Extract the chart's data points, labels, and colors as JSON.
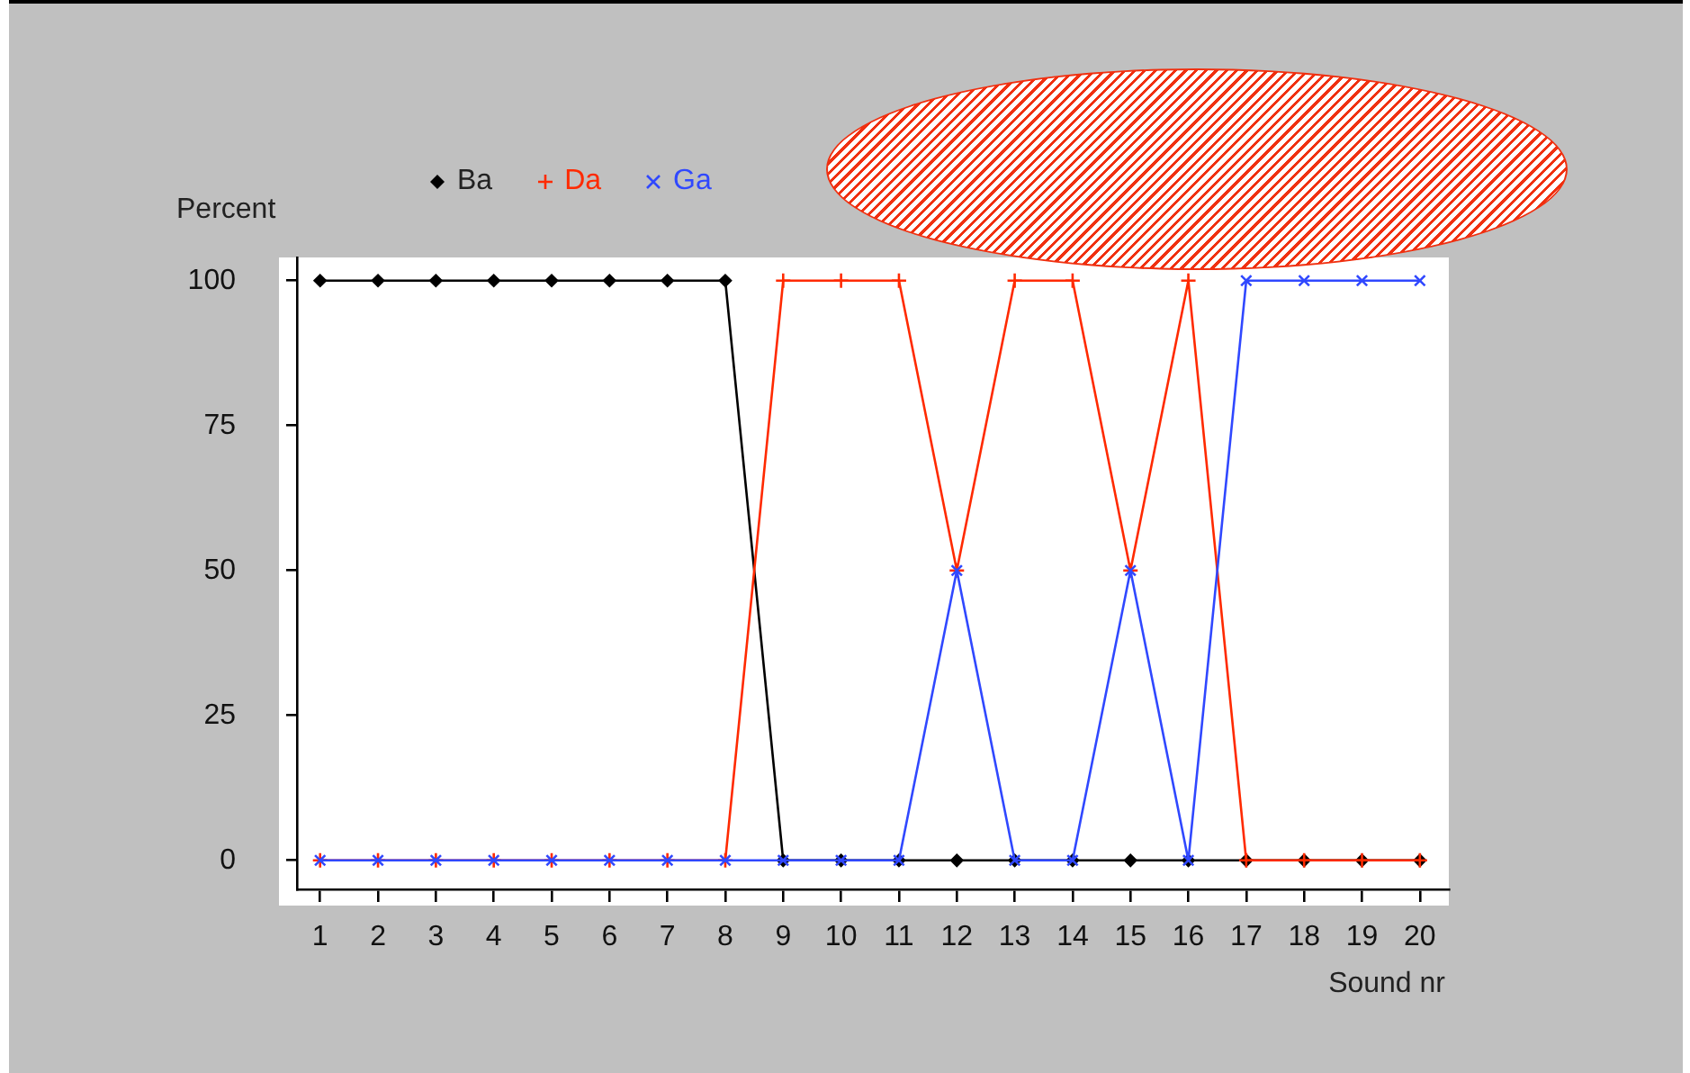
{
  "chart_data": {
    "type": "line",
    "ylabel": "Percent",
    "xlabel": "Sound nr",
    "x": [
      1,
      2,
      3,
      4,
      5,
      6,
      7,
      8,
      9,
      10,
      11,
      12,
      13,
      14,
      15,
      16,
      17,
      18,
      19,
      20
    ],
    "series": [
      {
        "name": "Ba",
        "color": "#000000",
        "marker": "diamond",
        "values": [
          100,
          100,
          100,
          100,
          100,
          100,
          100,
          100,
          0,
          0,
          0,
          0,
          0,
          0,
          0,
          0,
          0,
          0,
          0,
          0
        ]
      },
      {
        "name": "Da",
        "color": "#ff2a00",
        "marker": "cross",
        "values": [
          0,
          0,
          0,
          0,
          0,
          0,
          0,
          0,
          100,
          100,
          100,
          50,
          100,
          100,
          50,
          100,
          0,
          0,
          0,
          0
        ]
      },
      {
        "name": "Ga",
        "color": "#3048ff",
        "marker": "x",
        "values": [
          0,
          0,
          0,
          0,
          0,
          0,
          0,
          0,
          0,
          0,
          0,
          50,
          0,
          0,
          50,
          0,
          100,
          100,
          100,
          100
        ]
      }
    ],
    "xlim": [
      0.6,
      20.5
    ],
    "xticks": [
      1,
      2,
      3,
      4,
      5,
      6,
      7,
      8,
      9,
      10,
      11,
      12,
      13,
      14,
      15,
      16,
      17,
      18,
      19,
      20
    ],
    "ylim": [
      -5,
      104
    ],
    "yticks": [
      0,
      25,
      50,
      75,
      100
    ],
    "grid": false,
    "legend": "top",
    "line_style": "solid"
  }
}
